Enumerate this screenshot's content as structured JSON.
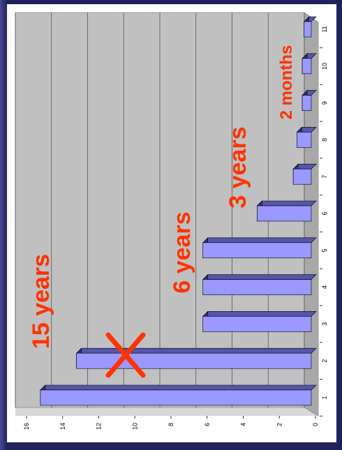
{
  "chart_data": {
    "type": "bar",
    "orientation": "rotated",
    "categories": [
      "1",
      "2",
      "3",
      "4",
      "5",
      "6",
      "7",
      "8",
      "9",
      "10",
      "11"
    ],
    "values": [
      15,
      13,
      6,
      6,
      6,
      3,
      1,
      0.8,
      0.5,
      0.5,
      0.4
    ],
    "color": "#9999ff",
    "ylim": [
      0,
      16
    ],
    "yticks": [
      0,
      2,
      4,
      6,
      8,
      10,
      12,
      14,
      16
    ],
    "grid": true,
    "annotations": [
      "15 years",
      "6 years",
      "3 years",
      "2 months"
    ]
  }
}
